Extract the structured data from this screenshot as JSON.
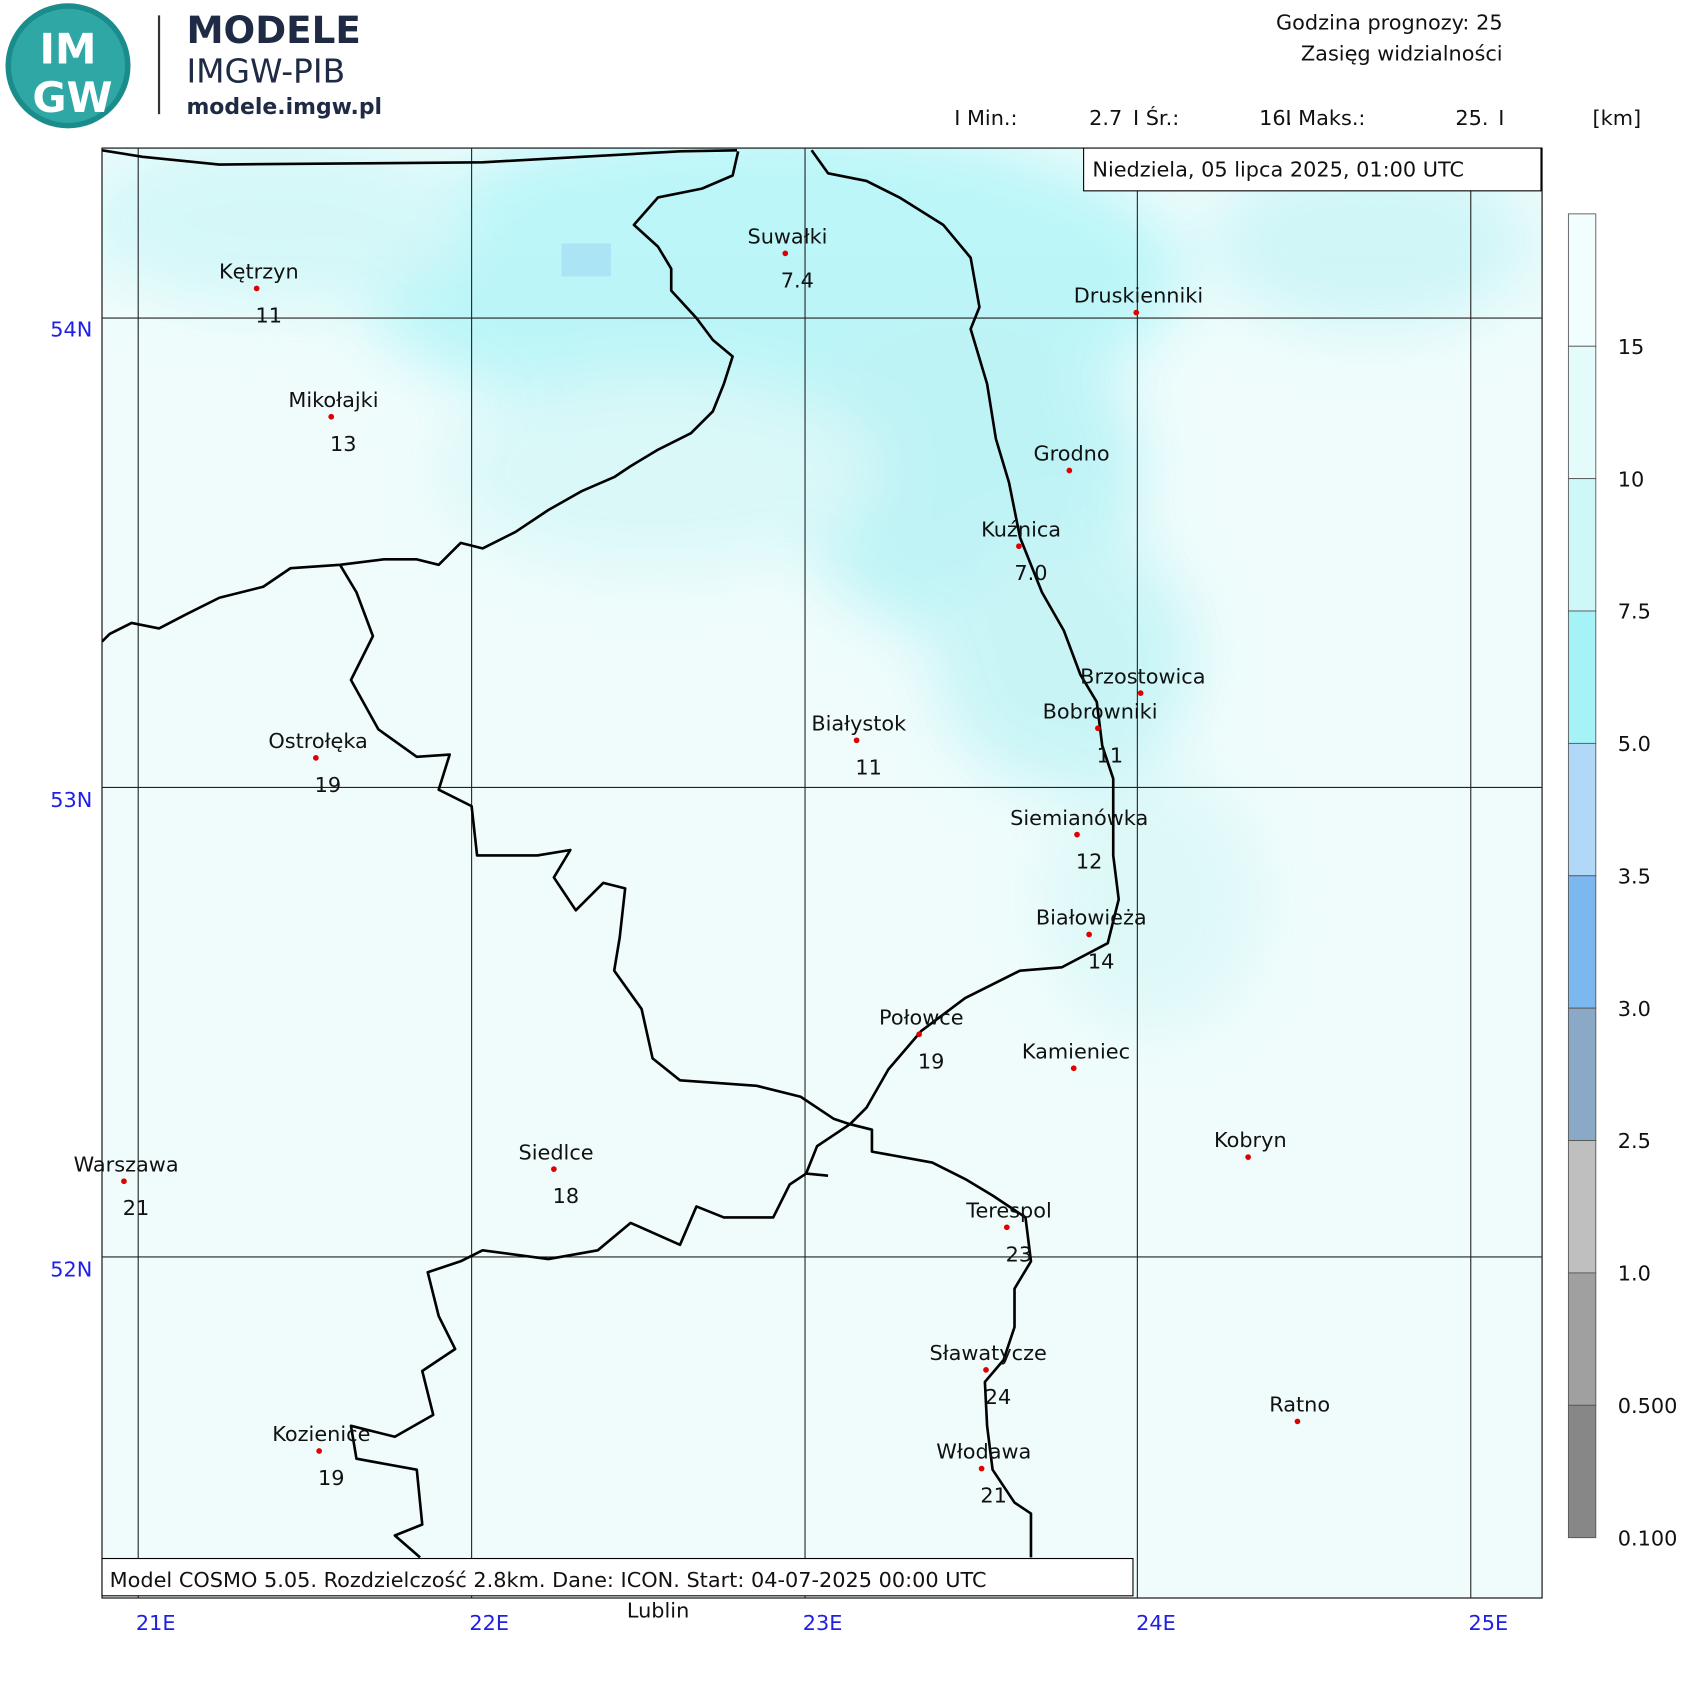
{
  "header": {
    "logo_text_top": "IM",
    "logo_text_bottom": "GW",
    "brand": "MODELE",
    "institute": "IMGW-PIB",
    "website": "modele.imgw.pl",
    "forecast_hour": "Godzina prognozy: 25",
    "variable": "Zasięg widzialności"
  },
  "stats": {
    "min_label": "I Min.:",
    "min_value": "2.7",
    "avg_label": "I Śr.:",
    "avg_value": "16.",
    "max_label": "I Maks.:",
    "max_value": "25.",
    "separator": "I",
    "unit": "[km]"
  },
  "date": "Niedziela, 05 lipca 2025, 01:00 UTC",
  "footer": "Model COSMO 5.05. Rozdzielczość 2.8km. Dane: ICON. Start: 04-07-2025 00:00 UTC",
  "map": {
    "latitudes": [
      "54N",
      "53N",
      "52N"
    ],
    "longitudes": [
      "21E",
      "22E",
      "23E",
      "24E",
      "25E"
    ],
    "outside_label": "Lublin",
    "cities": [
      {
        "name": "Kętrzyn",
        "value": "11"
      },
      {
        "name": "Suwałki",
        "value": "7.4"
      },
      {
        "name": "Druskienniki"
      },
      {
        "name": "Mikołajki",
        "value": "13"
      },
      {
        "name": "Grodno"
      },
      {
        "name": "Kuźnica",
        "value": "7.0"
      },
      {
        "name": "Brzostowica"
      },
      {
        "name": "Bobrowniki",
        "value": "11"
      },
      {
        "name": "Białystok",
        "value": "11"
      },
      {
        "name": "Ostrołęka",
        "value": "19"
      },
      {
        "name": "Siemianówka",
        "value": "12"
      },
      {
        "name": "Białowieża",
        "value": "14"
      },
      {
        "name": "Połowce",
        "value": "19"
      },
      {
        "name": "Kamieniec"
      },
      {
        "name": "Kobryn"
      },
      {
        "name": "Warszawa",
        "value": "21"
      },
      {
        "name": "Siedlce",
        "value": "18"
      },
      {
        "name": "Terespol",
        "value": "23"
      },
      {
        "name": "Sławatycze",
        "value": "24"
      },
      {
        "name": "Ratno"
      },
      {
        "name": "Kozienice",
        "value": "19"
      },
      {
        "name": "Włodawa",
        "value": "21"
      }
    ]
  },
  "legend": {
    "labels": [
      "15",
      "10",
      "7.5",
      "5.0",
      "3.5",
      "3.0",
      "2.5",
      "1.0",
      "0.500",
      "0.100"
    ],
    "colors": [
      "#f2fdfd",
      "#e4fbfb",
      "#cdf7f8",
      "#a6f3f7",
      "#b2d8f8",
      "#7cb8f0",
      "#8aa9c6",
      "#bfbfbf",
      "#a0a0a0",
      "#878787"
    ]
  }
}
